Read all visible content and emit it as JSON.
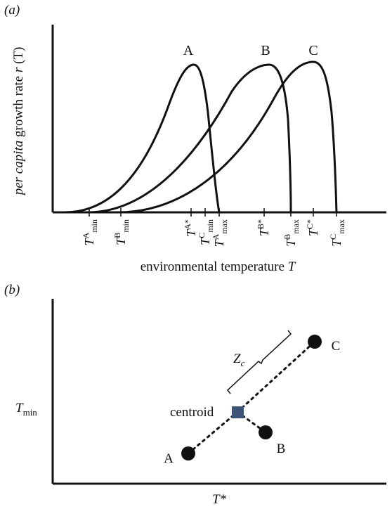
{
  "panel_a": {
    "label": "(a)",
    "y_label_italic": "per capita",
    "y_label_rest": " growth rate ",
    "y_label_symbol": "r",
    "y_label_arg": " (T)",
    "x_label_text": "environmental temperature ",
    "x_label_symbol": "T",
    "curve_labels": [
      "A",
      "B",
      "C"
    ],
    "ticks": [
      {
        "base": "T",
        "sup": "A",
        "sub": "min"
      },
      {
        "base": "T",
        "sup": "B",
        "sub": "min"
      },
      {
        "base": "T",
        "sup": "A*",
        "sub": ""
      },
      {
        "base": "T",
        "sup": "C",
        "sub": "min"
      },
      {
        "base": "T",
        "sup": "A",
        "sub": "max"
      },
      {
        "base": "T",
        "sup": "B*",
        "sub": ""
      },
      {
        "base": "T",
        "sup": "B",
        "sub": "max"
      },
      {
        "base": "T",
        "sup": "C*",
        "sub": ""
      },
      {
        "base": "T",
        "sup": "C",
        "sub": "max"
      }
    ]
  },
  "panel_b": {
    "label": "(b)",
    "y_label_base": "T",
    "y_label_sub": "min",
    "x_label": "T*",
    "centroid_label": "centroid",
    "distance_base": "Z",
    "distance_sub": "c",
    "point_labels": [
      "A",
      "B",
      "C"
    ]
  },
  "colors": {
    "stroke": "#111111",
    "centroid_fill": "#3d5476"
  }
}
